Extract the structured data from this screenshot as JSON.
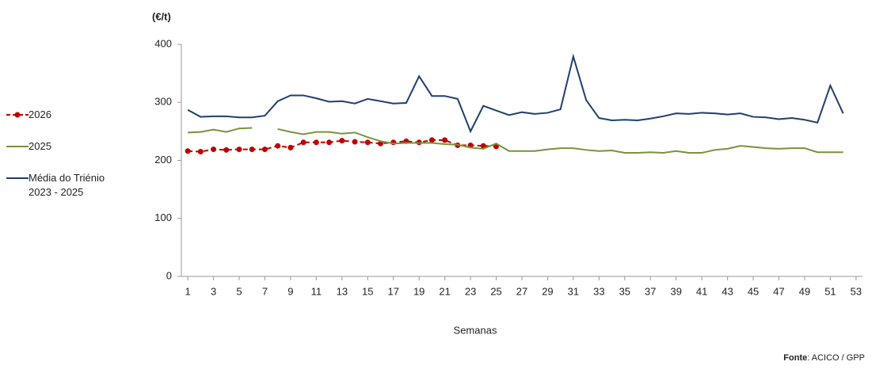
{
  "chart_data": {
    "type": "line",
    "y_label": "(€/t)",
    "x_label": "Semanas",
    "source_label": "Fonte",
    "source_text": ": ACICO / GPP",
    "x": [
      1,
      2,
      3,
      4,
      5,
      6,
      7,
      8,
      9,
      10,
      11,
      12,
      13,
      14,
      15,
      16,
      17,
      18,
      19,
      20,
      21,
      22,
      23,
      24,
      25,
      26,
      27,
      28,
      29,
      30,
      31,
      32,
      33,
      34,
      35,
      36,
      37,
      38,
      39,
      40,
      41,
      42,
      43,
      44,
      45,
      46,
      47,
      48,
      49,
      50,
      51,
      52
    ],
    "xlim": [
      0.5,
      53.5
    ],
    "xticks": [
      1,
      3,
      5,
      7,
      9,
      11,
      13,
      15,
      17,
      19,
      21,
      23,
      25,
      27,
      29,
      31,
      33,
      35,
      37,
      39,
      41,
      43,
      45,
      47,
      49,
      51,
      53
    ],
    "ylim": [
      0,
      400
    ],
    "yticks": [
      0,
      100,
      200,
      300,
      400
    ],
    "grid": false,
    "series": [
      {
        "name": "2026",
        "color": "#c00000",
        "dashed": true,
        "markers": true,
        "values": [
          216,
          215,
          219,
          218,
          219,
          219,
          219,
          225,
          222,
          231,
          231,
          231,
          234,
          232,
          231,
          229,
          231,
          233,
          231,
          235,
          235,
          226,
          226,
          225,
          224,
          null,
          null,
          null,
          null,
          null,
          null,
          null,
          null,
          null,
          null,
          null,
          null,
          null,
          null,
          null,
          null,
          null,
          null,
          null,
          null,
          null,
          null,
          null,
          null,
          null,
          null,
          null
        ]
      },
      {
        "name": "2025",
        "color": "#77933c",
        "dashed": false,
        "markers": false,
        "values": [
          248,
          249,
          253,
          249,
          255,
          256,
          null,
          254,
          249,
          245,
          249,
          249,
          246,
          248,
          240,
          233,
          229,
          230,
          230,
          230,
          228,
          227,
          222,
          220,
          229,
          216,
          216,
          216,
          219,
          221,
          221,
          218,
          216,
          217,
          213,
          213,
          214,
          213,
          216,
          213,
          213,
          218,
          220,
          225,
          223,
          221,
          220,
          221,
          221,
          214,
          214,
          214
        ]
      },
      {
        "name": "Média do Triénio 2023 - 2025",
        "color": "#1f3f6e",
        "dashed": false,
        "markers": false,
        "values": [
          287,
          275,
          276,
          276,
          274,
          274,
          277,
          302,
          312,
          312,
          307,
          301,
          302,
          298,
          306,
          302,
          298,
          299,
          345,
          311,
          311,
          306,
          250,
          294,
          286,
          278,
          283,
          280,
          282,
          288,
          379,
          304,
          273,
          269,
          270,
          269,
          272,
          276,
          281,
          280,
          282,
          281,
          279,
          281,
          275,
          274,
          271,
          273,
          270,
          265,
          329,
          281
        ]
      }
    ]
  }
}
